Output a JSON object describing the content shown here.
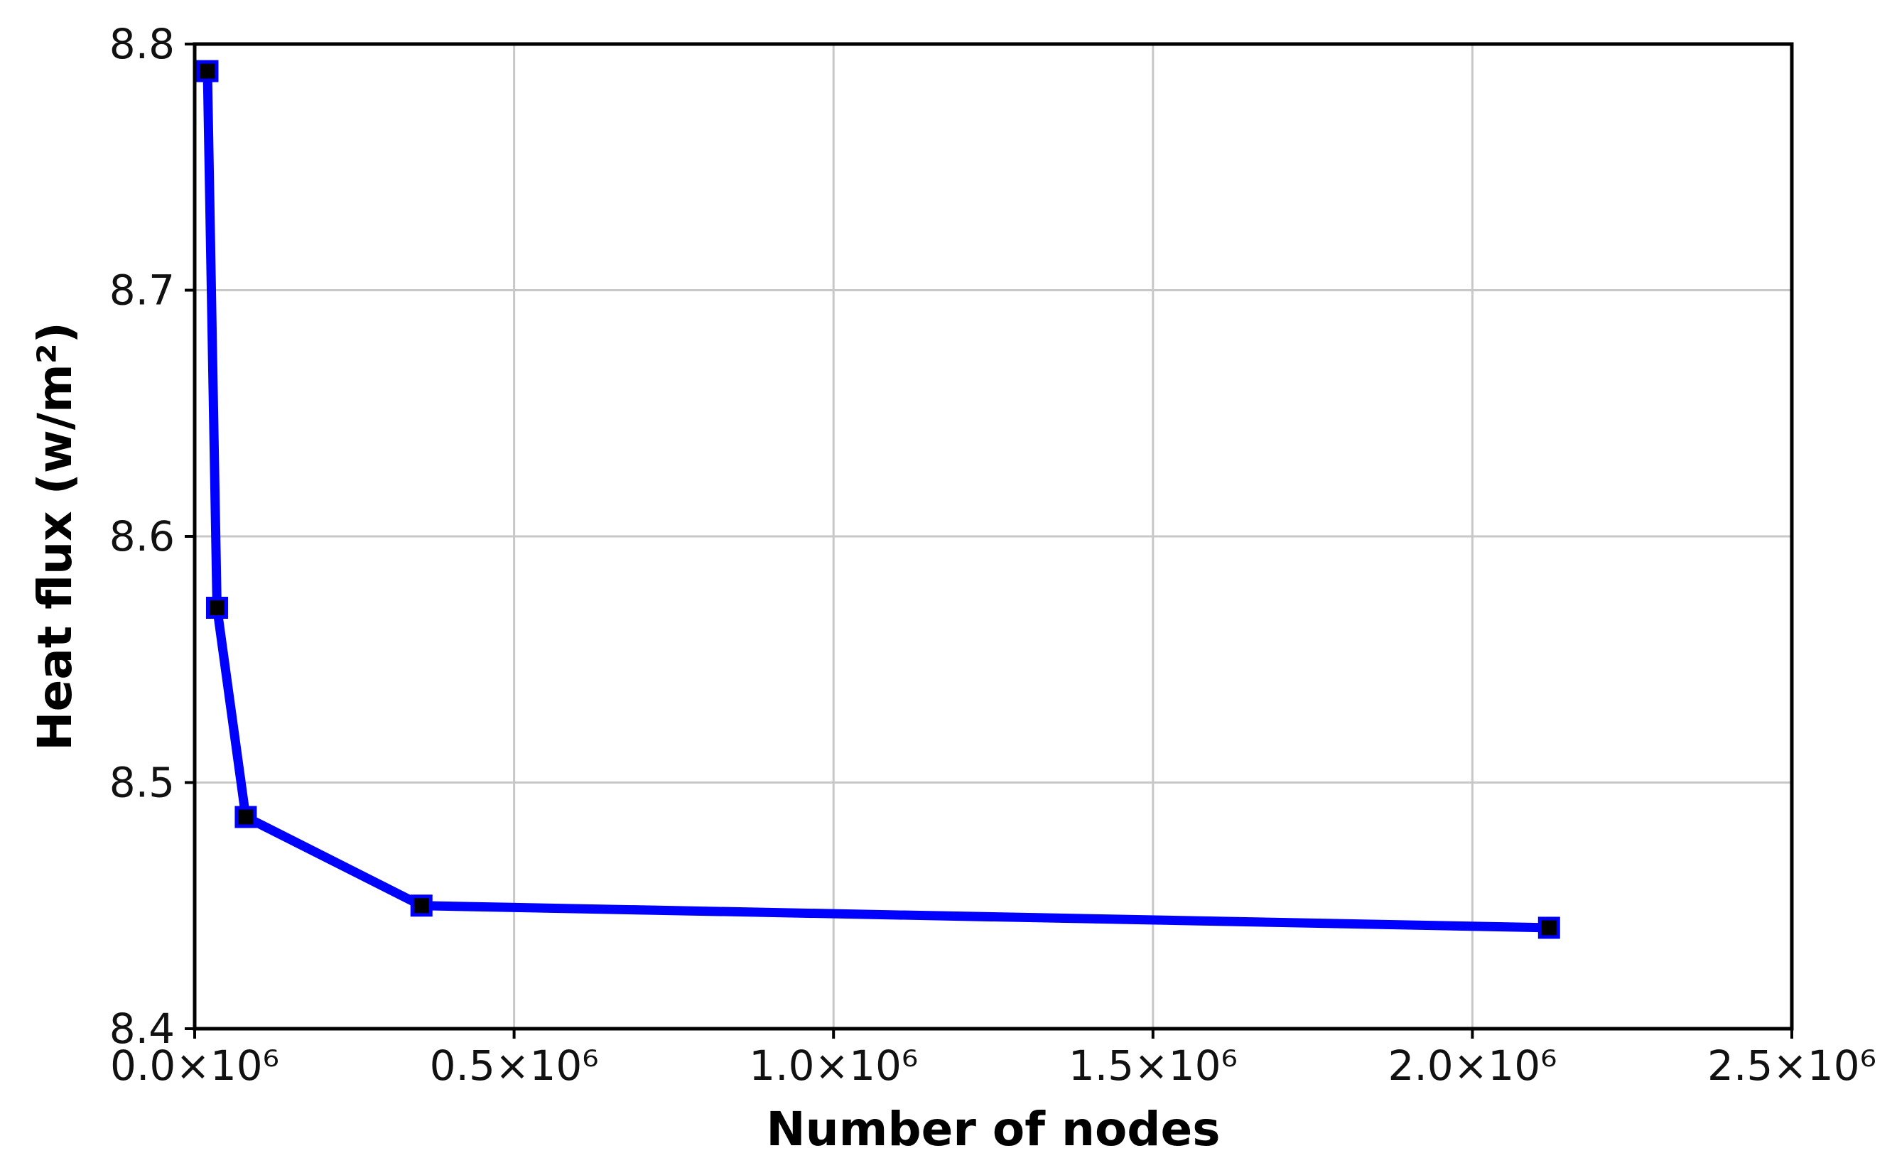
{
  "chart_data": {
    "type": "line",
    "xlabel": "Number of nodes",
    "ylabel": "Heat flux (w/m²)",
    "xlim": [
      0,
      2500000
    ],
    "ylim": [
      8.4,
      8.8
    ],
    "x_ticks": [
      0,
      500000,
      1000000,
      1500000,
      2000000,
      2500000
    ],
    "x_tick_labels": [
      "0.0×10⁶",
      "0.5×10⁶",
      "1.0×10⁶",
      "1.5×10⁶",
      "2.0×10⁶",
      "2.5×10⁶"
    ],
    "y_ticks": [
      8.4,
      8.5,
      8.6,
      8.7,
      8.8
    ],
    "y_tick_labels": [
      "8.4",
      "8.5",
      "8.6",
      "8.7",
      "8.8"
    ],
    "grid": true,
    "series": [
      {
        "x": [
          20000,
          35000,
          80000,
          355000,
          2120000
        ],
        "y": [
          8.789,
          8.571,
          8.486,
          8.45,
          8.441
        ],
        "color": "#0000ff",
        "marker": "square",
        "marker_color": "#000000"
      }
    ]
  }
}
